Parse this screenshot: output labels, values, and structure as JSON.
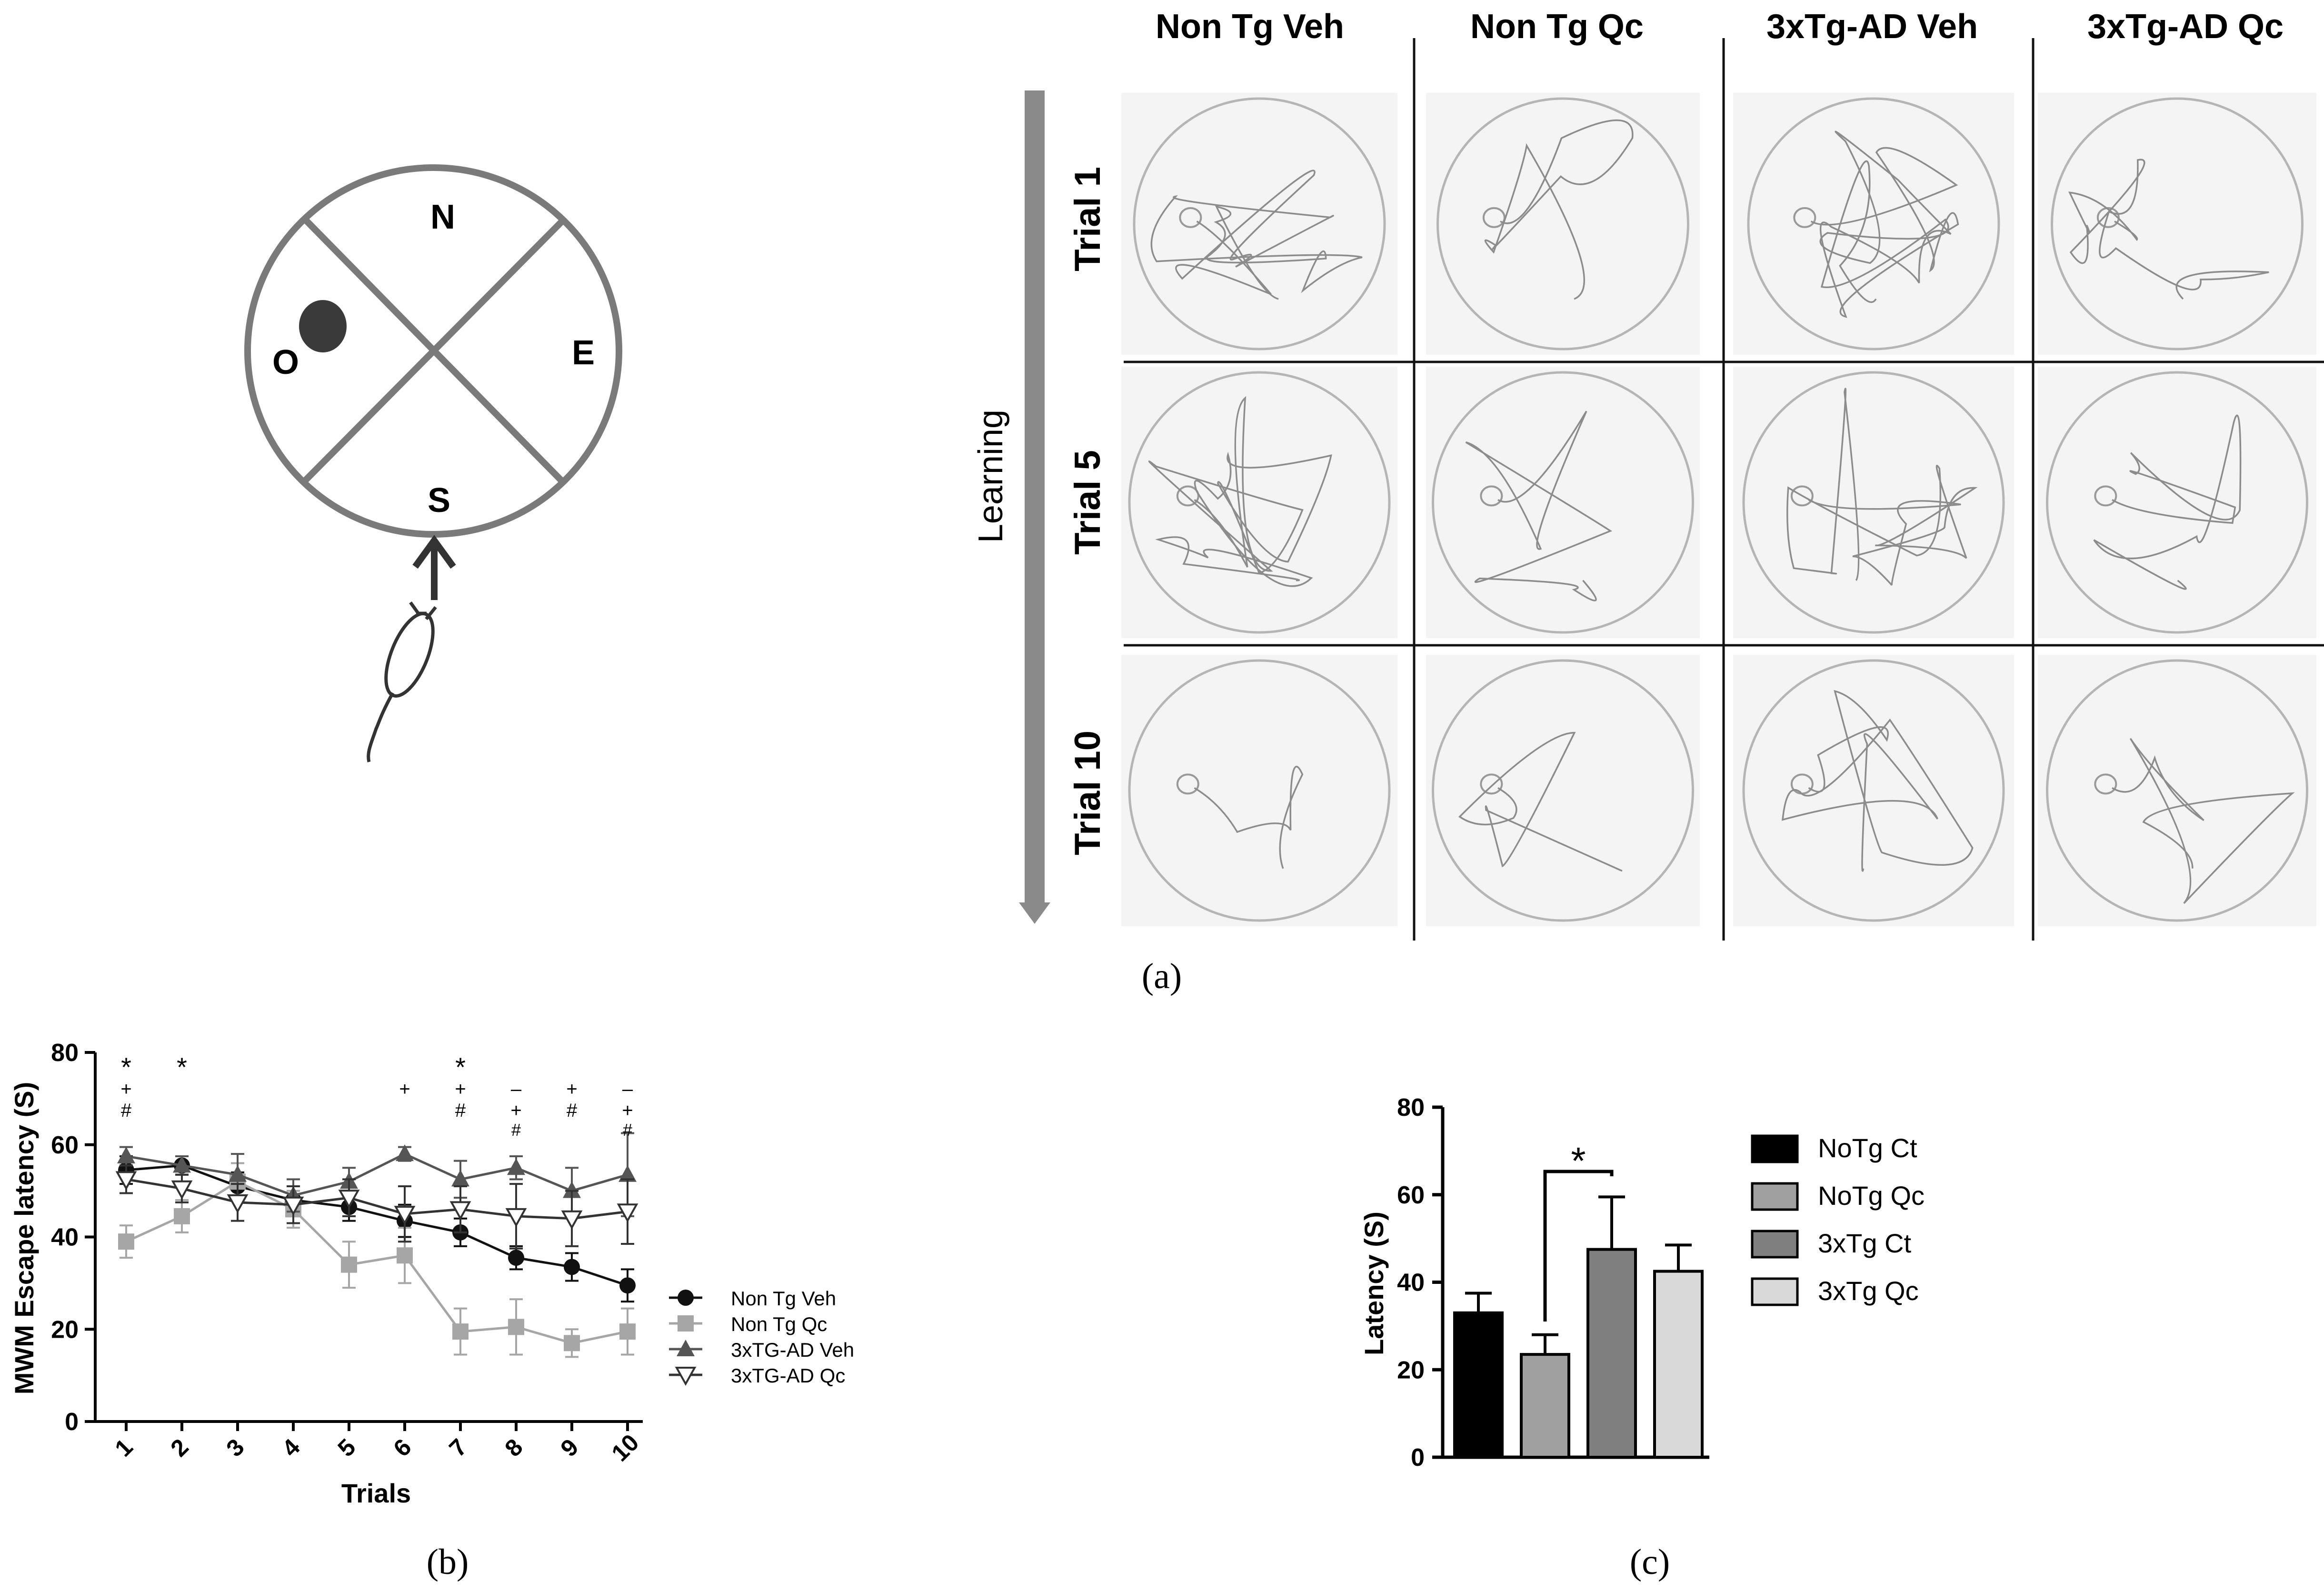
{
  "maze_diagram": {
    "quadrants": {
      "north": "N",
      "east": "E",
      "south": "S",
      "west": "O"
    }
  },
  "panel_a": {
    "label": "(a)",
    "column_headers": [
      "Non Tg Veh",
      "Non Tg Qc",
      "3xTg-AD Veh",
      "3xTg-AD Qc"
    ],
    "row_labels": [
      "Trial 1",
      "Trial 5",
      "Trial 10"
    ],
    "arrow_label": "Learning"
  },
  "panel_b": {
    "label": "(b)",
    "significance_rows": [
      [
        "*",
        "*",
        "",
        "",
        "",
        "",
        "*",
        "",
        "",
        ""
      ],
      [
        "+",
        "",
        "",
        "",
        "",
        "+",
        "+",
        "–",
        "+",
        "–"
      ],
      [
        "#",
        "",
        "",
        "",
        "",
        "",
        "#",
        "+",
        "#",
        "+"
      ],
      [
        "",
        "",
        "",
        "",
        "",
        "",
        "",
        "#",
        "",
        "#"
      ]
    ]
  },
  "panel_c": {
    "label": "(c)",
    "significance": "*"
  },
  "chart_data": [
    {
      "type": "line",
      "title": "",
      "xlabel": "Trials",
      "ylabel": "MWM Escape latency (S)",
      "x": [
        1,
        2,
        3,
        4,
        5,
        6,
        7,
        8,
        9,
        10
      ],
      "ylim": [
        0,
        80
      ],
      "yticks": [
        0,
        20,
        40,
        60,
        80
      ],
      "series": [
        {
          "name": "Non Tg Veh",
          "marker": "circle-filled",
          "color": "#111111",
          "values": [
            54.5,
            55.5,
            51,
            48,
            46.5,
            43.5,
            41,
            35.5,
            33.5,
            29.5
          ],
          "errors": [
            3,
            2,
            3,
            3,
            3,
            3.5,
            3,
            2.5,
            3,
            3.5
          ]
        },
        {
          "name": "Non Tg Qc",
          "marker": "square-filled",
          "color": "#a6a6a6",
          "values": [
            39,
            44.5,
            52,
            46,
            34,
            36,
            19.5,
            20.5,
            17,
            19.5
          ],
          "errors": [
            3.5,
            3.5,
            4,
            4,
            5,
            6,
            5,
            6,
            3,
            5
          ]
        },
        {
          "name": "3xTG-AD Veh",
          "marker": "triangle-filled",
          "color": "#555555",
          "values": [
            57.5,
            55.5,
            53.5,
            49,
            52,
            58,
            52.5,
            55,
            50,
            53.5
          ],
          "errors": [
            2,
            2,
            4.5,
            3.5,
            3,
            1.5,
            4,
            2.5,
            5,
            9
          ]
        },
        {
          "name": "3xTG-AD Qc",
          "marker": "triangle-down-open",
          "color": "#333333",
          "values": [
            52.5,
            50.5,
            47.5,
            47,
            48.5,
            45,
            46,
            44.5,
            44,
            45.5
          ],
          "errors": [
            3,
            3,
            4,
            4,
            4,
            6,
            5,
            7,
            6,
            7
          ]
        }
      ]
    },
    {
      "type": "bar",
      "title": "",
      "xlabel": "",
      "ylabel": "Latency (S)",
      "ylim": [
        0,
        80
      ],
      "yticks": [
        0,
        20,
        40,
        60,
        80
      ],
      "categories": [
        "NoTg Ct",
        "NoTg Qc",
        "3xTg Ct",
        "3xTg Qc"
      ],
      "values": [
        33,
        23.5,
        47.5,
        42.5
      ],
      "errors": [
        4.5,
        4.5,
        12,
        6
      ],
      "colors": [
        "#000000",
        "#a0a0a0",
        "#7f7f7f",
        "#d9d9d9"
      ],
      "legend": [
        "NoTg Ct",
        "NoTg Qc",
        "3xTg Ct",
        "3xTg Qc"
      ]
    }
  ]
}
